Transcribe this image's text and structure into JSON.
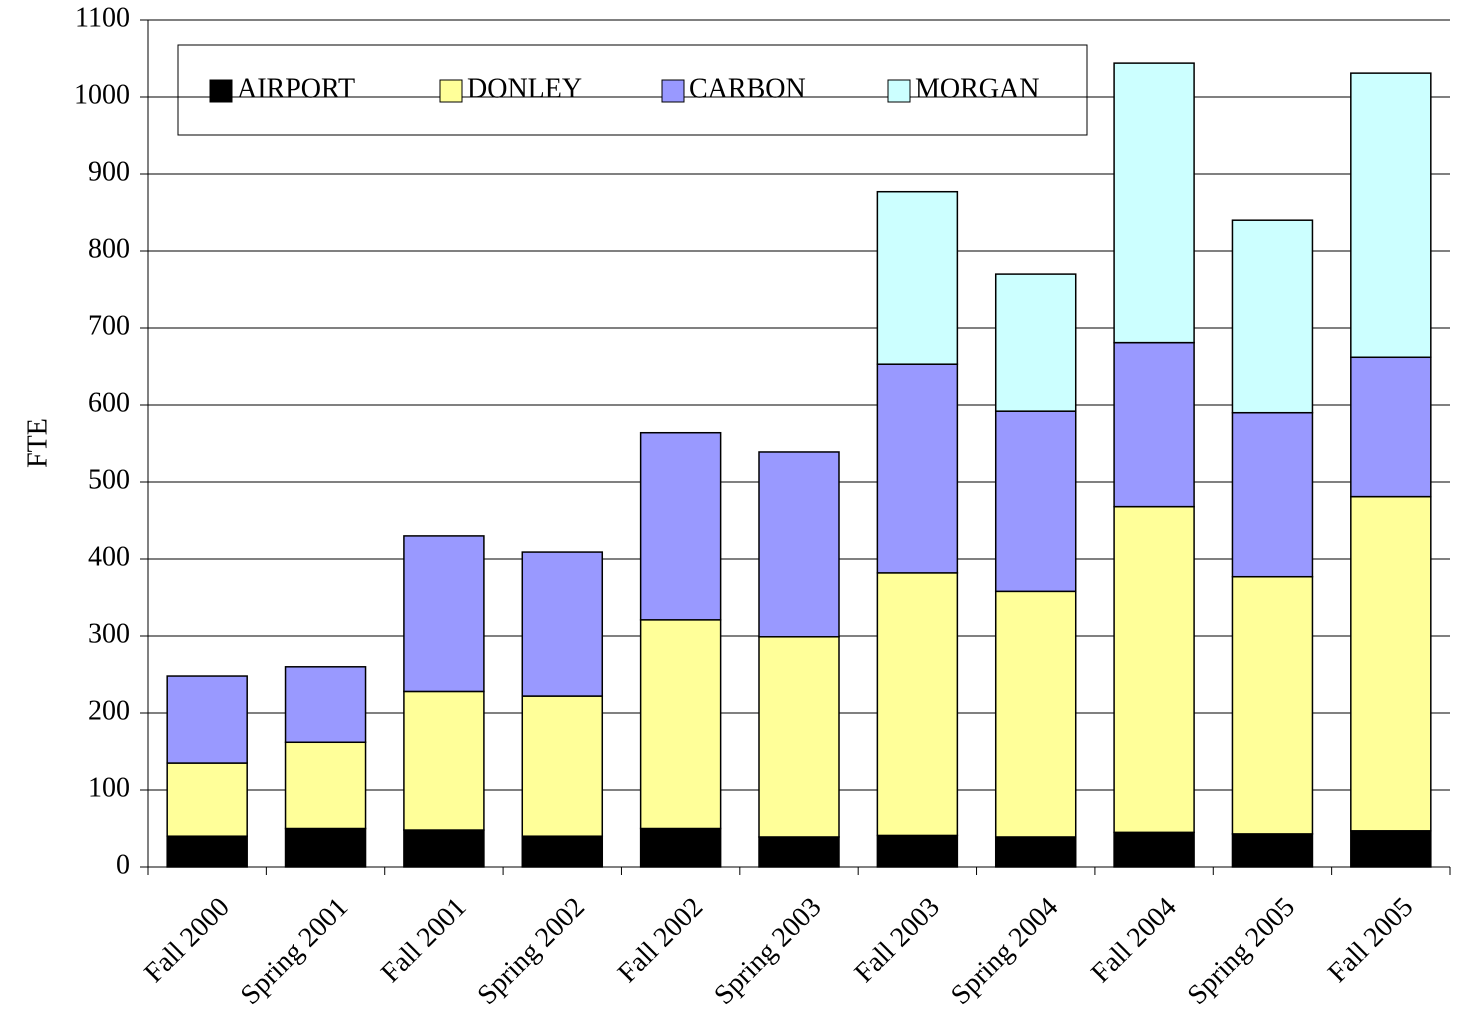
{
  "chart_data": {
    "type": "stacked_bar",
    "y_label": "FTE",
    "categories": [
      "Fall 2000",
      "Spring 2001",
      "Fall 2001",
      "Spring 2002",
      "Fall 2002",
      "Spring 2003",
      "Fall 2003",
      "Spring 2004",
      "Fall 2004",
      "Spring 2005",
      "Fall 2005"
    ],
    "series": [
      {
        "name": "AIRPORT",
        "color": "#000000",
        "values": [
          40,
          50,
          48,
          40,
          50,
          39,
          41,
          39,
          45,
          43,
          47
        ]
      },
      {
        "name": "DONLEY",
        "color": "#ffff99",
        "values": [
          95,
          112,
          180,
          182,
          271,
          260,
          341,
          319,
          423,
          334,
          434
        ]
      },
      {
        "name": "CARBON",
        "color": "#9999ff",
        "values": [
          113,
          98,
          202,
          187,
          243,
          240,
          271,
          234,
          213,
          213,
          181
        ]
      },
      {
        "name": "MORGAN",
        "color": "#ccffff",
        "values": [
          0,
          0,
          0,
          0,
          0,
          0,
          224,
          178,
          363,
          250,
          369
        ]
      }
    ],
    "ylim": [
      0,
      1100
    ],
    "yticks": [
      0,
      100,
      200,
      300,
      400,
      500,
      600,
      700,
      800,
      900,
      1000,
      1100
    ],
    "grid": true,
    "legend": "top"
  }
}
